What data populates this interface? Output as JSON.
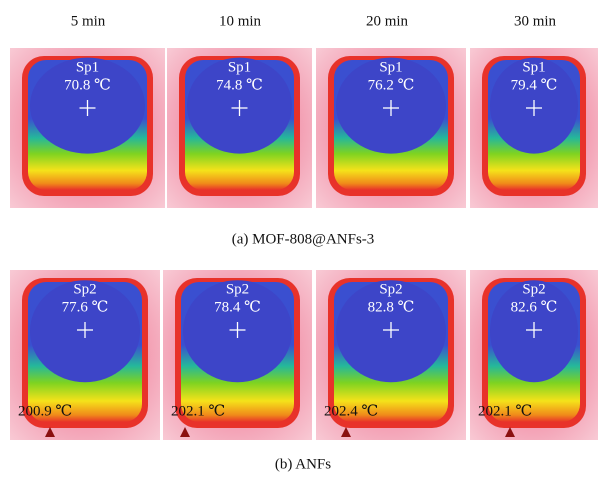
{
  "columns": [
    "5 min",
    "10 min",
    "20 min",
    "30 min"
  ],
  "panels": [
    {
      "caption": "(a) MOF-808@ANFs-3",
      "images": [
        {
          "spot": "Sp1",
          "temp": "70.8 ℃"
        },
        {
          "spot": "Sp1",
          "temp": "74.8 ℃"
        },
        {
          "spot": "Sp1",
          "temp": "76.2 ℃"
        },
        {
          "spot": "Sp1",
          "temp": "79.4 ℃"
        }
      ]
    },
    {
      "caption": "(b) ANFs",
      "images": [
        {
          "spot": "Sp2",
          "temp": "77.6 ℃",
          "max_temp": "200.9 ℃"
        },
        {
          "spot": "Sp2",
          "temp": "78.4 ℃",
          "max_temp": "202.1 ℃"
        },
        {
          "spot": "Sp2",
          "temp": "82.8 ℃",
          "max_temp": "202.4 ℃"
        },
        {
          "spot": "Sp2",
          "temp": "82.6 ℃",
          "max_temp": "202.1 ℃"
        }
      ]
    }
  ]
}
